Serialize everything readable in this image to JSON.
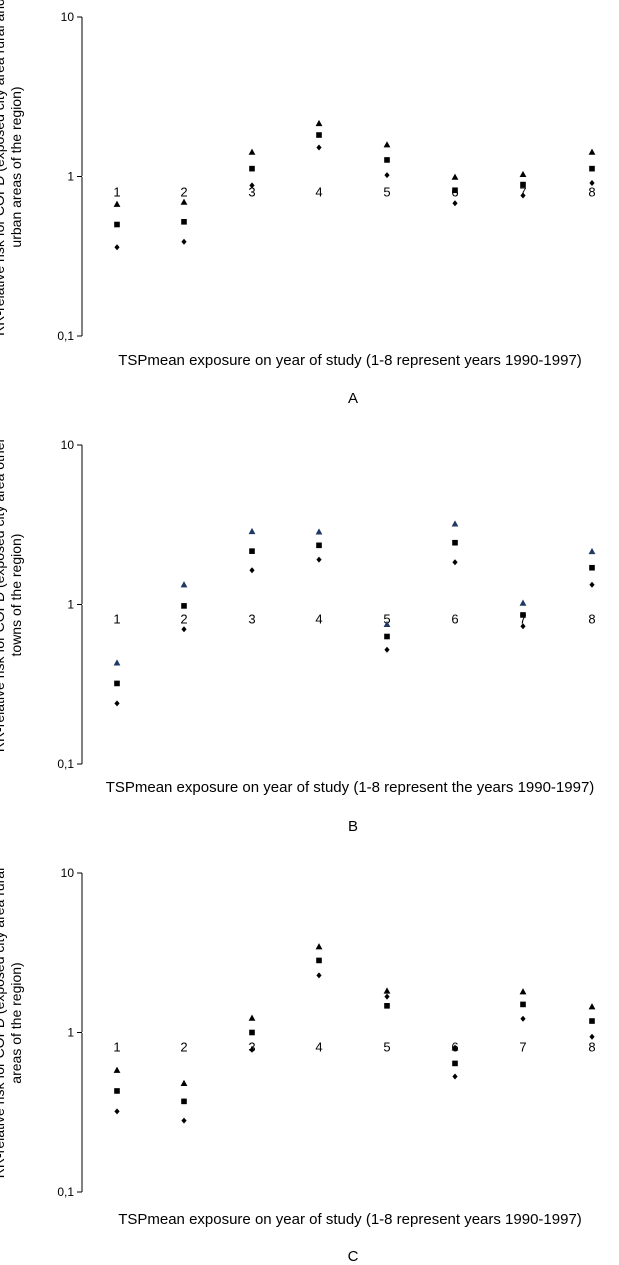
{
  "chart_data": [
    {
      "type": "scatter",
      "panel_label": "A",
      "ylabel": "RR-relative risk for COPD (exposed city area rural and urban areas of the region)",
      "xlabel": "TSPmean exposure on year of study (1-8 represent years 1990-1997)",
      "yscale": "log",
      "ylim": [
        0.1,
        10
      ],
      "yticks": [
        "0,1",
        "1",
        "10"
      ],
      "categories": [
        "1",
        "2",
        "3",
        "4",
        "5",
        "6",
        "7",
        "8"
      ],
      "series": [
        {
          "marker": "triangle",
          "color": "#000000",
          "values": [
            0.67,
            0.69,
            1.42,
            2.15,
            1.58,
            0.99,
            1.03,
            1.42
          ]
        },
        {
          "marker": "square",
          "color": "#000000",
          "values": [
            0.5,
            0.52,
            1.12,
            1.82,
            1.27,
            0.82,
            0.89,
            1.12
          ]
        },
        {
          "marker": "diamond",
          "color": "#000000",
          "values": [
            0.36,
            0.39,
            0.88,
            1.52,
            1.02,
            0.68,
            0.76,
            0.91
          ]
        }
      ]
    },
    {
      "type": "scatter",
      "panel_label": "B",
      "ylabel": "RR-relative risk for COPD (exposed city area other towns of the region)",
      "xlabel": "TSPmean exposure on year of study (1-8 represent the years 1990-1997)",
      "yscale": "log",
      "ylim": [
        0.1,
        10
      ],
      "yticks": [
        "0,1",
        "1",
        "10"
      ],
      "categories": [
        "1",
        "2",
        "3",
        "4",
        "5",
        "6",
        "7",
        "8"
      ],
      "series": [
        {
          "marker": "triangle",
          "color": "#1f3864",
          "values": [
            0.43,
            1.33,
            2.87,
            2.85,
            0.75,
            3.2,
            1.02,
            2.15
          ]
        },
        {
          "marker": "square",
          "color": "#000000",
          "values": [
            0.32,
            0.98,
            2.16,
            2.35,
            0.63,
            2.44,
            0.86,
            1.7
          ]
        },
        {
          "marker": "diamond",
          "color": "#000000",
          "values": [
            0.24,
            0.7,
            1.64,
            1.91,
            0.52,
            1.84,
            0.73,
            1.33
          ]
        }
      ]
    },
    {
      "type": "scatter",
      "panel_label": "C",
      "ylabel": "RR-relative risk for COPD (exposed city area rural areas of the region)",
      "xlabel": "TSPmean exposure on year of study (1-8 represent years 1990-1997)",
      "yscale": "log",
      "ylim": [
        0.1,
        10
      ],
      "yticks": [
        "0,1",
        "1",
        "10"
      ],
      "categories": [
        "1",
        "2",
        "3",
        "4",
        "5",
        "6",
        "7",
        "8"
      ],
      "series": [
        {
          "marker": "triangle",
          "color": "#000000",
          "values": [
            0.58,
            0.48,
            1.23,
            3.45,
            1.82,
            0.8,
            1.8,
            1.45
          ]
        },
        {
          "marker": "square",
          "color": "#000000",
          "values": [
            0.43,
            0.37,
            1.0,
            2.83,
            1.47,
            0.64,
            1.5,
            1.18
          ]
        },
        {
          "marker": "diamond",
          "color": "#000000",
          "values": [
            0.32,
            0.28,
            0.78,
            2.28,
            1.68,
            0.53,
            1.22,
            0.94
          ]
        }
      ]
    }
  ]
}
